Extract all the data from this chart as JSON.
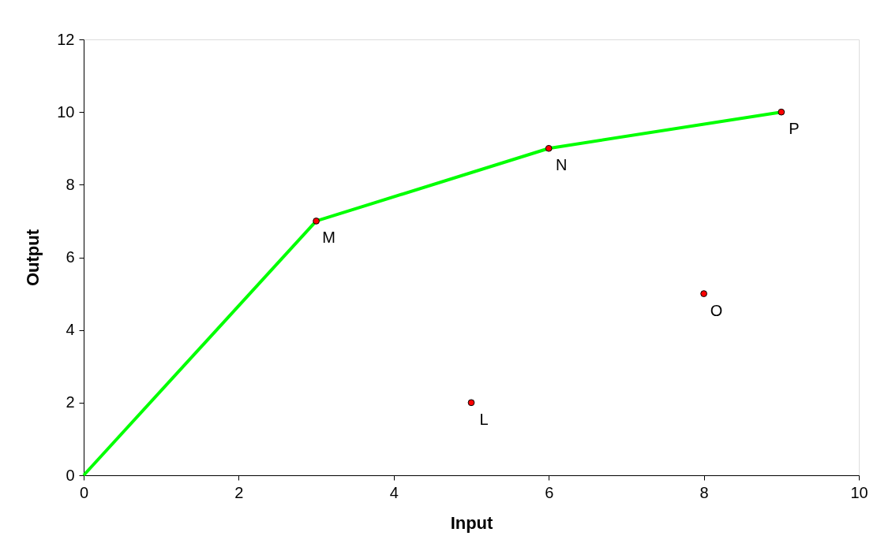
{
  "chart_data": {
    "type": "scatter",
    "xlabel": "Input",
    "ylabel": "Output",
    "xlim": [
      0,
      10
    ],
    "xticks": [
      0,
      2,
      4,
      6,
      8,
      10
    ],
    "ylim": [
      0,
      12
    ],
    "yticks": [
      0,
      2,
      4,
      6,
      8,
      10,
      12
    ],
    "grid": false,
    "marker": "circle",
    "series": [
      {
        "type": "line",
        "color": "#00ff00",
        "x": [
          0,
          3,
          6,
          9
        ],
        "values": [
          0,
          7,
          9,
          10
        ],
        "marker": "none",
        "line_style": "solid"
      },
      {
        "color": "#ff0000",
        "x": [
          5,
          3,
          6,
          8,
          9
        ],
        "values": [
          2,
          7,
          9,
          5,
          10
        ]
      }
    ],
    "annotations": [
      {
        "text": "L",
        "x": 5,
        "y": 2
      },
      {
        "text": "M",
        "x": 3,
        "y": 7
      },
      {
        "text": "N",
        "x": 6,
        "y": 9
      },
      {
        "text": "O",
        "x": 8,
        "y": 5
      },
      {
        "text": "P",
        "x": 9,
        "y": 10
      }
    ]
  }
}
